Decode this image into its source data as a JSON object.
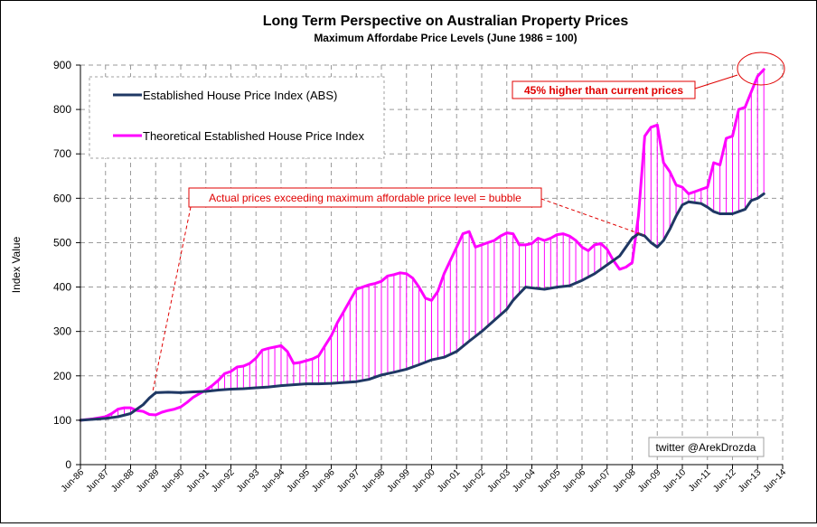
{
  "chart_data": {
    "type": "line",
    "title": "Long Term Perspective on Australian Property Prices",
    "subtitle": "Maximum Affordabe Price Levels  (June 1986 = 100)",
    "xlabel": "",
    "ylabel": "Index Value",
    "ylim": [
      0,
      900
    ],
    "yticks": [
      0,
      100,
      200,
      300,
      400,
      500,
      600,
      700,
      800,
      900
    ],
    "xlim": [
      1986,
      2014
    ],
    "xticks": [
      {
        "x": 1986,
        "label": "Jun-86"
      },
      {
        "x": 1987,
        "label": "Jun-87"
      },
      {
        "x": 1988,
        "label": "Jun-88"
      },
      {
        "x": 1989,
        "label": "Jun-89"
      },
      {
        "x": 1990,
        "label": "Jun-90"
      },
      {
        "x": 1991,
        "label": "Jun-91"
      },
      {
        "x": 1992,
        "label": "Jun-92"
      },
      {
        "x": 1993,
        "label": "Jun-93"
      },
      {
        "x": 1994,
        "label": "Jun-94"
      },
      {
        "x": 1995,
        "label": "Jun-95"
      },
      {
        "x": 1996,
        "label": "Jun-96"
      },
      {
        "x": 1997,
        "label": "Jun-97"
      },
      {
        "x": 1998,
        "label": "Jun-98"
      },
      {
        "x": 1999,
        "label": "Jun-99"
      },
      {
        "x": 2000,
        "label": "Jun-00"
      },
      {
        "x": 2001,
        "label": "Jun-01"
      },
      {
        "x": 2002,
        "label": "Jun-02"
      },
      {
        "x": 2003,
        "label": "Jun-03"
      },
      {
        "x": 2004,
        "label": "Jun-04"
      },
      {
        "x": 2005,
        "label": "Jun-05"
      },
      {
        "x": 2006,
        "label": "Jun-06"
      },
      {
        "x": 2007,
        "label": "Jun-07"
      },
      {
        "x": 2008,
        "label": "Jun-08"
      },
      {
        "x": 2009,
        "label": "Jun-09"
      },
      {
        "x": 2010,
        "label": "Jun-10"
      },
      {
        "x": 2011,
        "label": "Jun-11"
      },
      {
        "x": 2012,
        "label": "Jun-12"
      },
      {
        "x": 2013,
        "label": "Jun-13"
      },
      {
        "x": 2014,
        "label": "Jun-14"
      }
    ],
    "grid": true,
    "series": [
      {
        "name": "Established House Price Index (ABS)",
        "color": "#1f3864",
        "points": [
          [
            1986.0,
            100
          ],
          [
            1986.5,
            102
          ],
          [
            1987.0,
            104
          ],
          [
            1987.5,
            108
          ],
          [
            1988.0,
            115
          ],
          [
            1988.25,
            125
          ],
          [
            1988.5,
            135
          ],
          [
            1988.75,
            150
          ],
          [
            1989.0,
            162
          ],
          [
            1989.5,
            163
          ],
          [
            1990.0,
            162
          ],
          [
            1990.5,
            164
          ],
          [
            1991.0,
            165
          ],
          [
            1991.5,
            168
          ],
          [
            1992.0,
            170
          ],
          [
            1992.5,
            171
          ],
          [
            1993.0,
            173
          ],
          [
            1993.5,
            175
          ],
          [
            1994.0,
            178
          ],
          [
            1994.5,
            180
          ],
          [
            1995.0,
            182
          ],
          [
            1995.5,
            182
          ],
          [
            1996.0,
            183
          ],
          [
            1996.5,
            185
          ],
          [
            1997.0,
            187
          ],
          [
            1997.5,
            192
          ],
          [
            1998.0,
            202
          ],
          [
            1998.5,
            208
          ],
          [
            1999.0,
            215
          ],
          [
            1999.5,
            225
          ],
          [
            2000.0,
            236
          ],
          [
            2000.5,
            242
          ],
          [
            2001.0,
            255
          ],
          [
            2001.5,
            278
          ],
          [
            2002.0,
            300
          ],
          [
            2002.5,
            325
          ],
          [
            2003.0,
            350
          ],
          [
            2003.25,
            370
          ],
          [
            2003.5,
            385
          ],
          [
            2003.75,
            400
          ],
          [
            2004.0,
            398
          ],
          [
            2004.5,
            395
          ],
          [
            2005.0,
            400
          ],
          [
            2005.5,
            403
          ],
          [
            2006.0,
            415
          ],
          [
            2006.5,
            430
          ],
          [
            2007.0,
            450
          ],
          [
            2007.5,
            470
          ],
          [
            2008.0,
            510
          ],
          [
            2008.25,
            520
          ],
          [
            2008.5,
            515
          ],
          [
            2008.75,
            500
          ],
          [
            2009.0,
            490
          ],
          [
            2009.25,
            505
          ],
          [
            2009.5,
            530
          ],
          [
            2009.75,
            560
          ],
          [
            2010.0,
            585
          ],
          [
            2010.25,
            592
          ],
          [
            2010.5,
            590
          ],
          [
            2010.75,
            588
          ],
          [
            2011.0,
            580
          ],
          [
            2011.25,
            570
          ],
          [
            2011.5,
            565
          ],
          [
            2011.75,
            565
          ],
          [
            2012.0,
            565
          ],
          [
            2012.25,
            570
          ],
          [
            2012.5,
            575
          ],
          [
            2012.75,
            595
          ],
          [
            2013.0,
            600
          ],
          [
            2013.25,
            610
          ]
        ]
      },
      {
        "name": "Theoretical Established House Price Index",
        "color": "#ff00ff",
        "points": [
          [
            1986.0,
            100
          ],
          [
            1986.5,
            103
          ],
          [
            1987.0,
            108
          ],
          [
            1987.25,
            115
          ],
          [
            1987.5,
            125
          ],
          [
            1987.75,
            128
          ],
          [
            1988.0,
            128
          ],
          [
            1988.25,
            122
          ],
          [
            1988.5,
            120
          ],
          [
            1988.75,
            113
          ],
          [
            1989.0,
            112
          ],
          [
            1989.25,
            118
          ],
          [
            1989.5,
            122
          ],
          [
            1989.75,
            125
          ],
          [
            1990.0,
            130
          ],
          [
            1990.25,
            140
          ],
          [
            1990.5,
            152
          ],
          [
            1990.75,
            160
          ],
          [
            1991.0,
            168
          ],
          [
            1991.25,
            178
          ],
          [
            1991.5,
            190
          ],
          [
            1991.75,
            205
          ],
          [
            1992.0,
            210
          ],
          [
            1992.25,
            220
          ],
          [
            1992.5,
            222
          ],
          [
            1992.75,
            228
          ],
          [
            1993.0,
            240
          ],
          [
            1993.25,
            258
          ],
          [
            1993.5,
            262
          ],
          [
            1993.75,
            265
          ],
          [
            1994.0,
            268
          ],
          [
            1994.25,
            255
          ],
          [
            1994.5,
            228
          ],
          [
            1994.75,
            230
          ],
          [
            1995.0,
            234
          ],
          [
            1995.25,
            238
          ],
          [
            1995.5,
            245
          ],
          [
            1995.75,
            268
          ],
          [
            1996.0,
            290
          ],
          [
            1996.25,
            320
          ],
          [
            1996.5,
            345
          ],
          [
            1996.75,
            370
          ],
          [
            1997.0,
            395
          ],
          [
            1997.25,
            400
          ],
          [
            1997.5,
            405
          ],
          [
            1997.75,
            408
          ],
          [
            1998.0,
            413
          ],
          [
            1998.25,
            425
          ],
          [
            1998.5,
            428
          ],
          [
            1998.75,
            432
          ],
          [
            1999.0,
            430
          ],
          [
            1999.25,
            420
          ],
          [
            1999.5,
            400
          ],
          [
            1999.75,
            375
          ],
          [
            2000.0,
            370
          ],
          [
            2000.25,
            390
          ],
          [
            2000.5,
            430
          ],
          [
            2000.75,
            460
          ],
          [
            2001.0,
            490
          ],
          [
            2001.25,
            520
          ],
          [
            2001.5,
            525
          ],
          [
            2001.75,
            490
          ],
          [
            2002.0,
            495
          ],
          [
            2002.25,
            500
          ],
          [
            2002.5,
            505
          ],
          [
            2002.75,
            515
          ],
          [
            2003.0,
            522
          ],
          [
            2003.25,
            520
          ],
          [
            2003.5,
            495
          ],
          [
            2003.75,
            495
          ],
          [
            2004.0,
            498
          ],
          [
            2004.25,
            510
          ],
          [
            2004.5,
            505
          ],
          [
            2004.75,
            510
          ],
          [
            2005.0,
            518
          ],
          [
            2005.25,
            520
          ],
          [
            2005.5,
            515
          ],
          [
            2005.75,
            505
          ],
          [
            2006.0,
            490
          ],
          [
            2006.25,
            482
          ],
          [
            2006.5,
            495
          ],
          [
            2006.75,
            498
          ],
          [
            2007.0,
            485
          ],
          [
            2007.25,
            460
          ],
          [
            2007.5,
            440
          ],
          [
            2007.75,
            445
          ],
          [
            2008.0,
            455
          ],
          [
            2008.25,
            560
          ],
          [
            2008.5,
            740
          ],
          [
            2008.75,
            760
          ],
          [
            2009.0,
            765
          ],
          [
            2009.25,
            680
          ],
          [
            2009.5,
            660
          ],
          [
            2009.75,
            630
          ],
          [
            2010.0,
            625
          ],
          [
            2010.25,
            610
          ],
          [
            2010.5,
            615
          ],
          [
            2010.75,
            620
          ],
          [
            2011.0,
            625
          ],
          [
            2011.25,
            680
          ],
          [
            2011.5,
            675
          ],
          [
            2011.75,
            735
          ],
          [
            2012.0,
            740
          ],
          [
            2012.25,
            800
          ],
          [
            2012.5,
            805
          ],
          [
            2012.75,
            840
          ],
          [
            2013.0,
            875
          ],
          [
            2013.25,
            890
          ]
        ]
      }
    ],
    "legend": [
      {
        "label": "Established House Price Index (ABS)",
        "color": "#1f3864"
      },
      {
        "label": "Theoretical Established House Price Index",
        "color": "#ff00ff"
      }
    ],
    "legend_position": "top-left",
    "annotations": [
      {
        "text": "45% higher than current prices",
        "color": "#e00000",
        "bold": true,
        "target_x": 2013.25,
        "target_y": 885
      },
      {
        "text": "Actual prices exceeding maximum affordable price level = bubble",
        "color": "#e00000",
        "bold": false,
        "targets": [
          [
            1989.0,
            162
          ],
          [
            2008.0,
            510
          ]
        ]
      }
    ],
    "credit": "twitter @ArekDrozda"
  }
}
